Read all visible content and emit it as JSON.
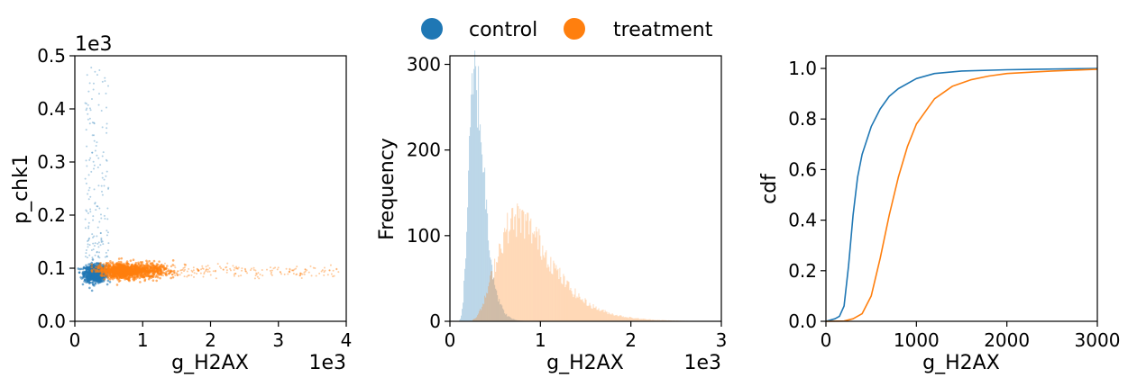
{
  "colors": {
    "control": "#1f77b4",
    "treatment": "#ff7f0e"
  },
  "legend": {
    "placement": "top-center",
    "items": [
      {
        "name": "control",
        "color": "#1f77b4"
      },
      {
        "name": "treatment",
        "color": "#ff7f0e"
      }
    ]
  },
  "chart_data": [
    {
      "id": "scatter",
      "type": "scatter",
      "xlabel": "g_H2AX",
      "ylabel": "p_chk1",
      "x_offset_text": "1e3",
      "y_offset_text": "1e3",
      "xlim": [
        0,
        4
      ],
      "ylim": [
        0,
        0.5
      ],
      "xticks": [
        "0",
        "1",
        "2",
        "3",
        "4"
      ],
      "yticks": [
        "0.0",
        "0.1",
        "0.2",
        "0.3",
        "0.4",
        "0.5"
      ],
      "series": [
        {
          "name": "control",
          "color": "#1f77b4",
          "center": [
            0.3,
            0.09
          ],
          "spread_x": [
            0.05,
            0.5
          ],
          "spread_y": [
            0.07,
            0.12
          ],
          "outlier_y_max": 0.5
        },
        {
          "name": "treatment",
          "color": "#ff7f0e",
          "center": [
            0.75,
            0.095
          ],
          "spread_x": [
            0.3,
            1.9
          ],
          "spread_y": [
            0.08,
            0.115
          ],
          "tail_x_max": 3.9
        }
      ]
    },
    {
      "id": "histogram",
      "type": "bar",
      "xlabel": "g_H2AX",
      "ylabel": "Frequency",
      "x_offset_text": "1e3",
      "xlim": [
        0,
        3
      ],
      "ylim": [
        0,
        310
      ],
      "xticks": [
        "0",
        "1",
        "2",
        "3"
      ],
      "yticks": [
        "0",
        "100",
        "200",
        "300"
      ],
      "series": [
        {
          "name": "control",
          "color": "#1f77b4",
          "mode": 0.28,
          "peak": 295,
          "range": [
            0.05,
            1.2
          ]
        },
        {
          "name": "treatment",
          "color": "#ff7f0e",
          "mode": 0.75,
          "peak": 125,
          "range": [
            0.25,
            2.8
          ]
        }
      ]
    },
    {
      "id": "cdf",
      "type": "line",
      "xlabel": "g_H2AX",
      "ylabel": "cdf",
      "xlim": [
        0,
        3000
      ],
      "ylim": [
        0,
        1.05
      ],
      "xticks": [
        "0",
        "1000",
        "2000",
        "3000"
      ],
      "yticks": [
        "0.0",
        "0.2",
        "0.4",
        "0.6",
        "0.8",
        "1.0"
      ],
      "series": [
        {
          "name": "control",
          "color": "#1f77b4",
          "x": [
            0,
            100,
            150,
            200,
            250,
            300,
            350,
            400,
            500,
            600,
            700,
            800,
            1000,
            1200,
            1500,
            2000,
            3000
          ],
          "y": [
            0,
            0.01,
            0.02,
            0.06,
            0.22,
            0.42,
            0.57,
            0.66,
            0.77,
            0.84,
            0.89,
            0.92,
            0.96,
            0.98,
            0.99,
            0.995,
            1.0
          ]
        },
        {
          "name": "treatment",
          "color": "#ff7f0e",
          "x": [
            0,
            200,
            300,
            400,
            500,
            600,
            700,
            800,
            900,
            1000,
            1200,
            1400,
            1600,
            1800,
            2000,
            2500,
            3000
          ],
          "y": [
            0,
            0.001,
            0.01,
            0.03,
            0.1,
            0.25,
            0.42,
            0.57,
            0.69,
            0.78,
            0.88,
            0.93,
            0.955,
            0.97,
            0.98,
            0.99,
            0.997
          ]
        }
      ]
    }
  ]
}
